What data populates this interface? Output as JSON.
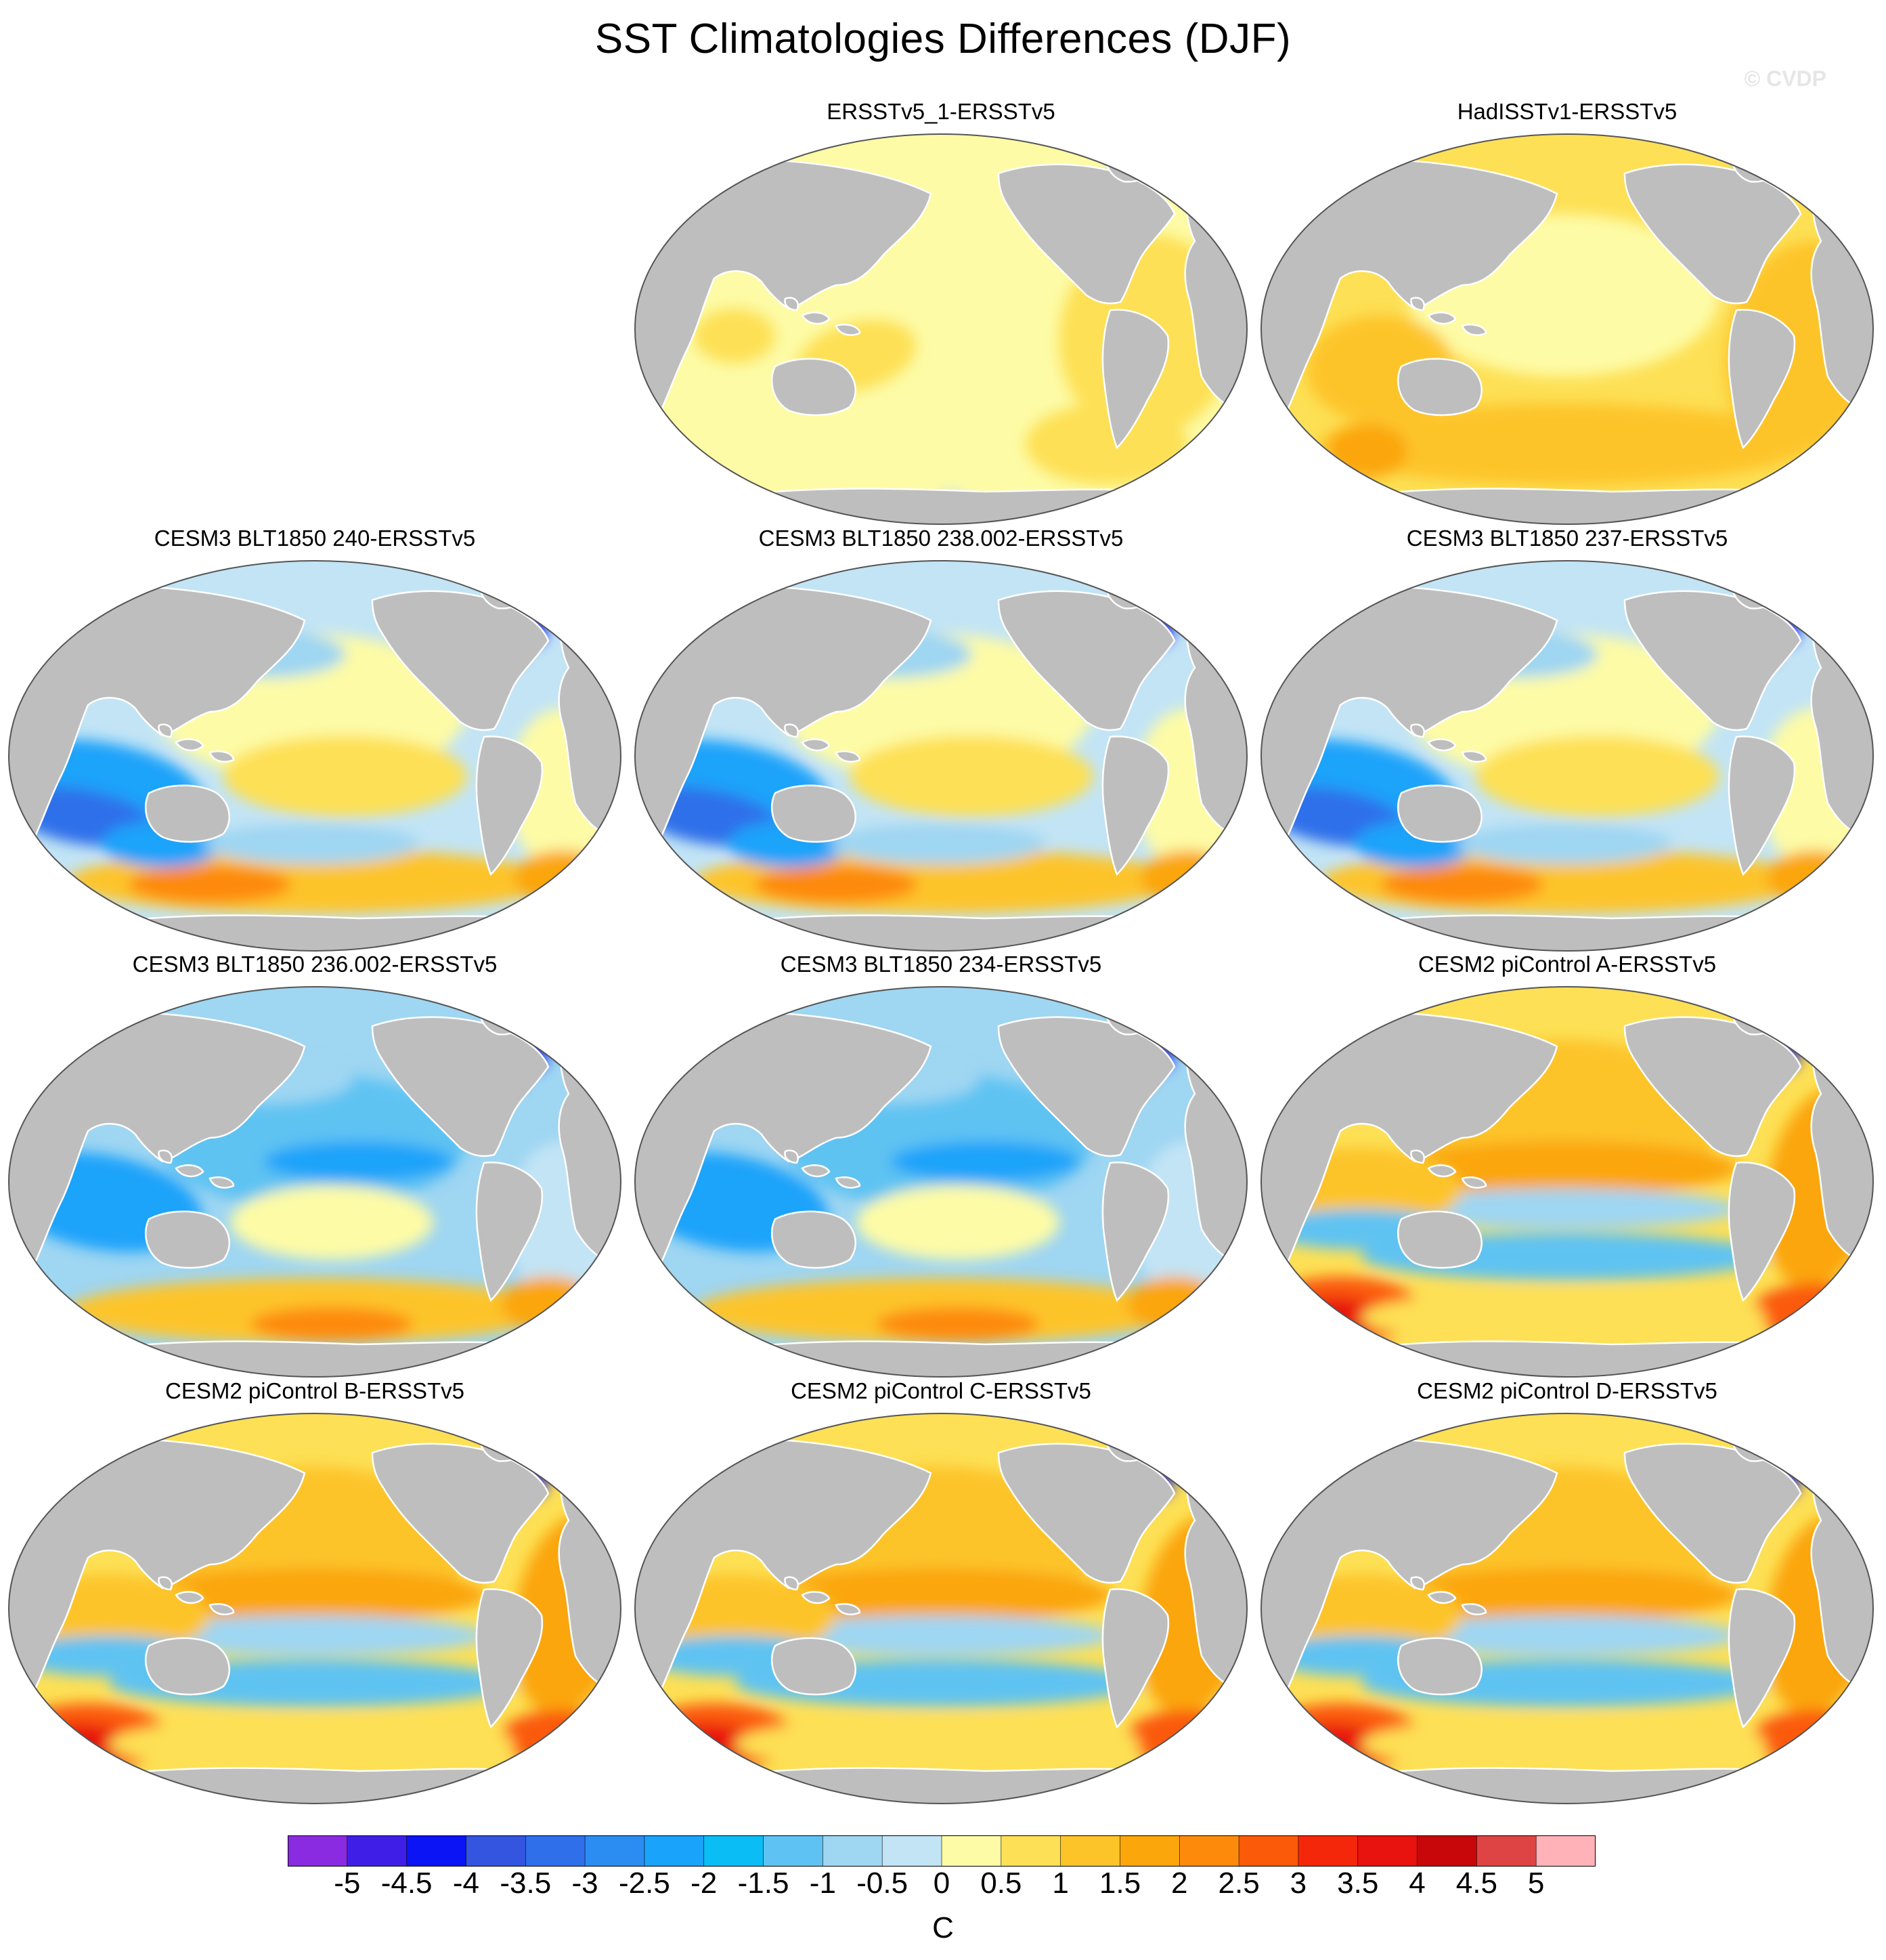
{
  "header": {
    "title": "SST Climatologies Differences (DJF)",
    "watermark": "© CVDP"
  },
  "panels": [
    {
      "label": "ERSSTv5_1-ERSSTv5",
      "row": 0,
      "col": 1,
      "pattern": "small"
    },
    {
      "label": "HadISSTv1-ERSSTv5",
      "row": 0,
      "col": 2,
      "pattern": "had"
    },
    {
      "label": "CESM3 BLT1850 240-ERSSTv5",
      "row": 1,
      "col": 0,
      "pattern": "cesm3"
    },
    {
      "label": "CESM3 BLT1850 238.002-ERSSTv5",
      "row": 1,
      "col": 1,
      "pattern": "cesm3"
    },
    {
      "label": "CESM3 BLT1850 237-ERSSTv5",
      "row": 1,
      "col": 2,
      "pattern": "cesm3"
    },
    {
      "label": "CESM3 BLT1850 236.002-ERSSTv5",
      "row": 2,
      "col": 0,
      "pattern": "cesm3cold"
    },
    {
      "label": "CESM3 BLT1850 234-ERSSTv5",
      "row": 2,
      "col": 1,
      "pattern": "cesm3cold"
    },
    {
      "label": "CESM2 piControl A-ERSSTv5",
      "row": 2,
      "col": 2,
      "pattern": "cesm2"
    },
    {
      "label": "CESM2 piControl B-ERSSTv5",
      "row": 3,
      "col": 0,
      "pattern": "cesm2"
    },
    {
      "label": "CESM2 piControl C-ERSSTv5",
      "row": 3,
      "col": 1,
      "pattern": "cesm2"
    },
    {
      "label": "CESM2 piControl D-ERSSTv5",
      "row": 3,
      "col": 2,
      "pattern": "cesm2"
    }
  ],
  "colorbar": {
    "units": "C",
    "tick_labels": [
      "-5",
      "-4.5",
      "-4",
      "-3.5",
      "-3",
      "-2.5",
      "-2",
      "-1.5",
      "-1",
      "-0.5",
      "0",
      "0.5",
      "1",
      "1.5",
      "2",
      "2.5",
      "3",
      "3.5",
      "4",
      "4.5",
      "5"
    ],
    "colors": [
      "#8a2be2",
      "#3f1fe8",
      "#0a14f5",
      "#3355e0",
      "#2f6fea",
      "#2b8cf2",
      "#1aa3fa",
      "#0bbdf5",
      "#5ec3f2",
      "#9fd6f2",
      "#c2e4f5",
      "#fdfba6",
      "#fde055",
      "#fdc429",
      "#fba60b",
      "#fd8a0a",
      "#fb5a08",
      "#f5270a",
      "#e8120e",
      "#c8070a",
      "#de4444",
      "#ffb3b8"
    ]
  },
  "styles": {
    "land": "#bebebe",
    "coast": "#ffffff",
    "outline": "#555555"
  }
}
